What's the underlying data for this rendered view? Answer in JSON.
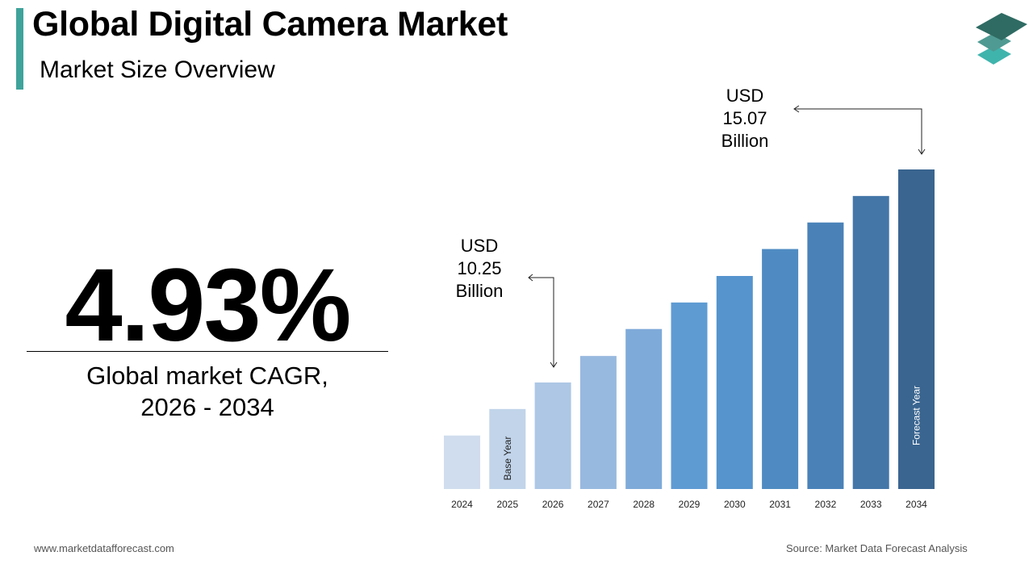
{
  "header": {
    "title": "Global Digital Camera Market",
    "subtitle": "Market Size Overview"
  },
  "kpi": {
    "value": "4.93%",
    "label_line1": "Global market CAGR,",
    "label_line2": "2026 - 2034"
  },
  "footer": {
    "website": "www.marketdatafforecast.com",
    "source": "Source: Market Data Forecast Analysis"
  },
  "logo": {
    "icon": "stacked-layers-logo",
    "colors": [
      "#2f6b63",
      "#4f9a92",
      "#3fb4ad"
    ]
  },
  "chart_data": {
    "type": "bar",
    "categories": [
      "2024",
      "2025",
      "2026",
      "2027",
      "2028",
      "2029",
      "2030",
      "2031",
      "2032",
      "2033",
      "2034"
    ],
    "values": [
      9.05,
      9.65,
      10.25,
      10.85,
      11.46,
      12.06,
      12.66,
      13.27,
      13.87,
      14.47,
      15.07
    ],
    "ylim": [
      7.84,
      15.07
    ],
    "grid": false,
    "colors": [
      "#d0ddee",
      "#c1d4ea",
      "#adc7e5",
      "#98b9df",
      "#7eaad9",
      "#5e9bd3",
      "#5594cd",
      "#4f8bc2",
      "#4a82b8",
      "#4476a8",
      "#3a6590"
    ],
    "bar_labels": {
      "2025": "Base Year",
      "2034": "Forecast Year"
    },
    "annotations": [
      {
        "category": "2026",
        "lines": [
          "USD",
          "10.25",
          "Billion"
        ]
      },
      {
        "category": "2034",
        "lines": [
          "USD",
          "15.07",
          "Billion"
        ]
      }
    ]
  }
}
